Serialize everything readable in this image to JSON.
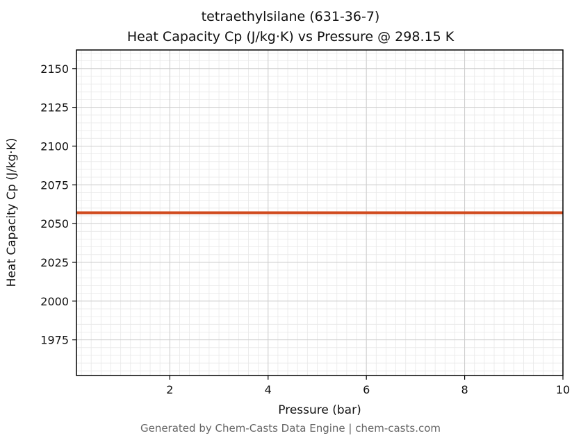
{
  "header": {
    "title": "tetraethylsilane (631-36-7)",
    "subtitle": "Heat Capacity Cp (J/kg·K) vs Pressure @ 298.15 K"
  },
  "footer": {
    "text": "Generated by Chem-Casts Data Engine | chem-casts.com"
  },
  "chart_data": {
    "type": "line",
    "title": "tetraethylsilane (631-36-7)",
    "subtitle": "Heat Capacity Cp (J/kg·K) vs Pressure @ 298.15 K",
    "xlabel": "Pressure (bar)",
    "ylabel": "Heat Capacity Cp (J/kg·K)",
    "xlim": [
      0.1,
      10
    ],
    "ylim": [
      1952,
      2162
    ],
    "xticks": [
      2,
      4,
      6,
      8,
      10
    ],
    "yticks": [
      1975,
      2000,
      2025,
      2050,
      2075,
      2100,
      2125,
      2150
    ],
    "minor_x_step": 0.2,
    "minor_y_step": 5,
    "grid": true,
    "legend": "none",
    "colors": {
      "line": "#d04a1e",
      "major_grid": "#cccccc",
      "minor_grid": "#e8e8e8",
      "border": "#000000"
    },
    "line_width": 4,
    "series": [
      {
        "name": "Heat Capacity Cp",
        "x": [
          0.1,
          1,
          2,
          3,
          4,
          5,
          6,
          7,
          8,
          9,
          10
        ],
        "y": [
          2057,
          2057,
          2057,
          2057,
          2057,
          2057,
          2057,
          2057,
          2057,
          2057,
          2057
        ]
      }
    ]
  }
}
